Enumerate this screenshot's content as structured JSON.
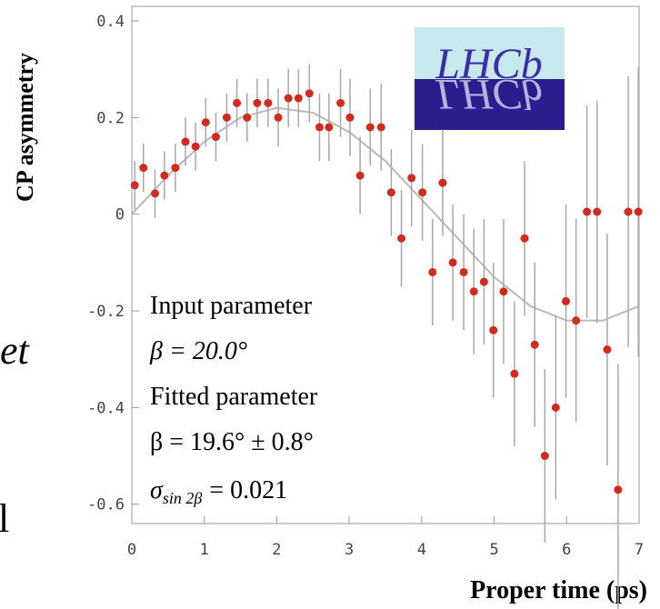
{
  "chart_data": {
    "type": "scatter",
    "ylabel": "CP asymmetry",
    "xlabel": "Proper time (ps)",
    "xlim": [
      0,
      7
    ],
    "ylim": [
      -0.64,
      0.43
    ],
    "xticks": [
      0,
      1,
      2,
      3,
      4,
      5,
      6,
      7
    ],
    "yticks": [
      0.4,
      0.2,
      0,
      -0.2,
      -0.4,
      -0.6
    ],
    "color": "#d42a1e",
    "x": [
      0.04,
      0.16,
      0.32,
      0.45,
      0.6,
      0.74,
      0.88,
      1.02,
      1.16,
      1.31,
      1.45,
      1.59,
      1.73,
      1.88,
      2.02,
      2.16,
      2.3,
      2.45,
      2.59,
      2.72,
      2.88,
      3.01,
      3.15,
      3.29,
      3.44,
      3.58,
      3.72,
      3.86,
      4.01,
      4.15,
      4.29,
      4.43,
      4.58,
      4.72,
      4.86,
      4.99,
      5.13,
      5.28,
      5.42,
      5.56,
      5.7,
      5.85,
      5.99,
      6.13,
      6.28,
      6.42,
      6.56,
      6.71,
      6.85,
      6.99
    ],
    "values": [
      0.06,
      0.096,
      0.043,
      0.08,
      0.096,
      0.15,
      0.14,
      0.19,
      0.16,
      0.2,
      0.23,
      0.2,
      0.23,
      0.23,
      0.2,
      0.24,
      0.24,
      0.25,
      0.18,
      0.18,
      0.23,
      0.2,
      0.08,
      0.18,
      0.18,
      0.045,
      -0.05,
      0.075,
      0.045,
      -0.12,
      0.065,
      -0.1,
      -0.12,
      -0.16,
      -0.14,
      -0.24,
      -0.16,
      -0.33,
      -0.05,
      -0.27,
      -0.5,
      -0.4,
      -0.18,
      -0.22,
      0.005,
      0.005,
      -0.28,
      -0.57,
      0.005,
      0.005
    ],
    "errors": [
      0.05,
      0.05,
      0.05,
      0.05,
      0.05,
      0.05,
      0.05,
      0.05,
      0.05,
      0.05,
      0.05,
      0.05,
      0.05,
      0.05,
      0.06,
      0.06,
      0.06,
      0.06,
      0.07,
      0.07,
      0.07,
      0.08,
      0.08,
      0.08,
      0.09,
      0.09,
      0.1,
      0.1,
      0.1,
      0.11,
      0.11,
      0.12,
      0.12,
      0.13,
      0.13,
      0.14,
      0.15,
      0.15,
      0.16,
      0.17,
      0.18,
      0.19,
      0.2,
      0.21,
      0.22,
      0.23,
      0.24,
      0.26,
      0.28,
      0.3
    ],
    "fit": {
      "color": "#b9b9b9",
      "x": [
        0,
        0.5,
        1,
        1.5,
        2,
        2.5,
        3,
        3.5,
        4,
        4.5,
        5,
        5.5,
        6,
        6.5,
        7
      ],
      "values": [
        0,
        0.08,
        0.15,
        0.2,
        0.22,
        0.21,
        0.17,
        0.11,
        0.03,
        -0.05,
        -0.13,
        -0.19,
        -0.22,
        -0.22,
        -0.19
      ]
    },
    "annotations": [
      "Input parameter",
      "β = 20.0°",
      "Fitted parameter",
      "β = 19.6° ± 0.8°"
    ],
    "sigma_label": {
      "symbol": "σ",
      "subscript": "sin 2β",
      "text": "= 0.021"
    },
    "logo": "LHCb"
  },
  "slide_fragments": [
    "et",
    "l"
  ]
}
